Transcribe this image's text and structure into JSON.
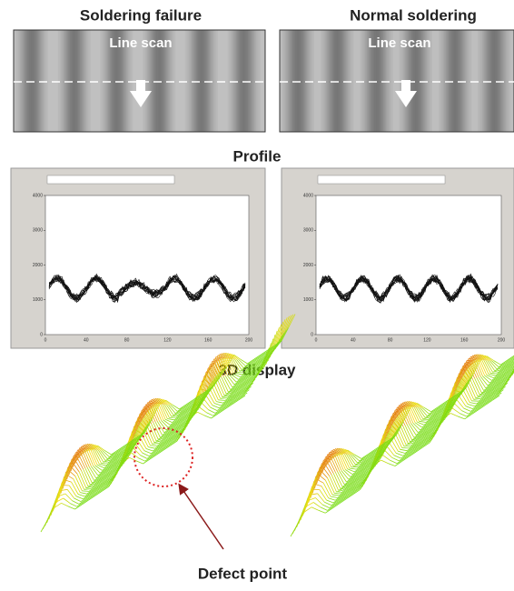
{
  "left": {
    "title": "Soldering failure",
    "label": "Line scan"
  },
  "right": {
    "title": "Normal soldering",
    "label": "Line scan"
  },
  "profile": {
    "title": "Profile",
    "yticks": [
      0,
      1000,
      2000,
      3000,
      4000
    ],
    "xticks": [
      0,
      40,
      80,
      120,
      160,
      200
    ]
  },
  "display": {
    "title": "3D display",
    "annotation": "Defect point"
  }
}
